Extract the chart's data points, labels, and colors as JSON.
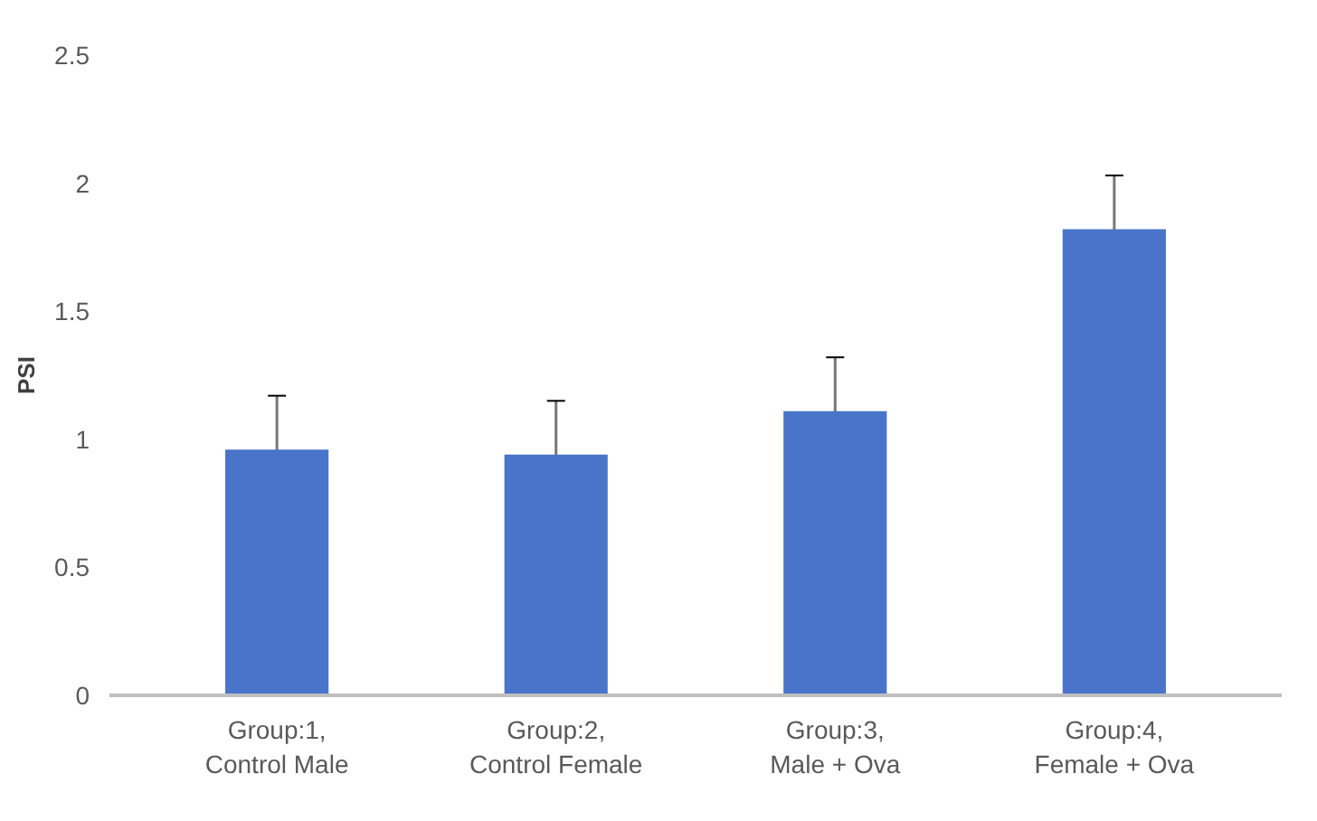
{
  "chart_data": {
    "type": "bar",
    "ylabel": "PSI",
    "categories": [
      "Group:1, Control Male",
      "Group:2, Control Female",
      "Group:3, Male + Ova",
      "Group:4, Female + Ova"
    ],
    "values": [
      0.96,
      0.94,
      1.11,
      1.82
    ],
    "errors": [
      0.21,
      0.21,
      0.21,
      0.21
    ],
    "color": "#4a74c9",
    "ylim": [
      0,
      2.5
    ],
    "yticks": [
      0,
      0.5,
      1,
      1.5,
      2,
      2.5
    ],
    "grid": false
  }
}
